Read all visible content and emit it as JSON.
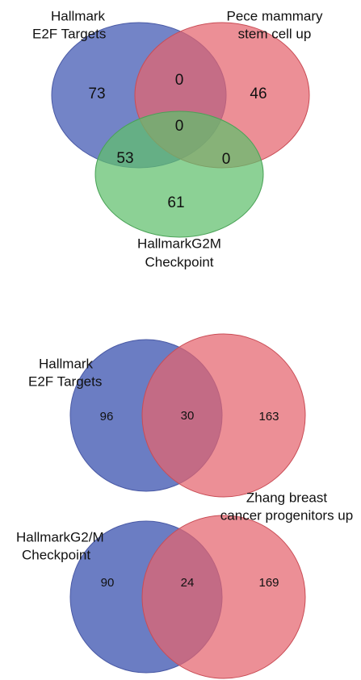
{
  "diagrams": [
    {
      "sets": [
        {
          "label": [
            "Hallmark",
            "E2F Targets"
          ]
        },
        {
          "label": [
            "Pece mammary",
            "stem cell up"
          ]
        },
        {
          "label": [
            "HallmarkG2M",
            "Checkpoint"
          ]
        }
      ],
      "regions": [
        73,
        0,
        46,
        0,
        53,
        0,
        61
      ]
    },
    {
      "sets": [
        {
          "label": [
            "Hallmark",
            "E2F Targets"
          ]
        },
        {
          "label": []
        }
      ],
      "regions": [
        96,
        30,
        163
      ]
    },
    {
      "sets": [
        {
          "label": [
            "HallmarkG2/M",
            "Checkpoint"
          ]
        },
        {
          "label": [
            "Zhang breast",
            "cancer progenitors up"
          ]
        }
      ],
      "regions": [
        90,
        24,
        169
      ]
    }
  ]
}
